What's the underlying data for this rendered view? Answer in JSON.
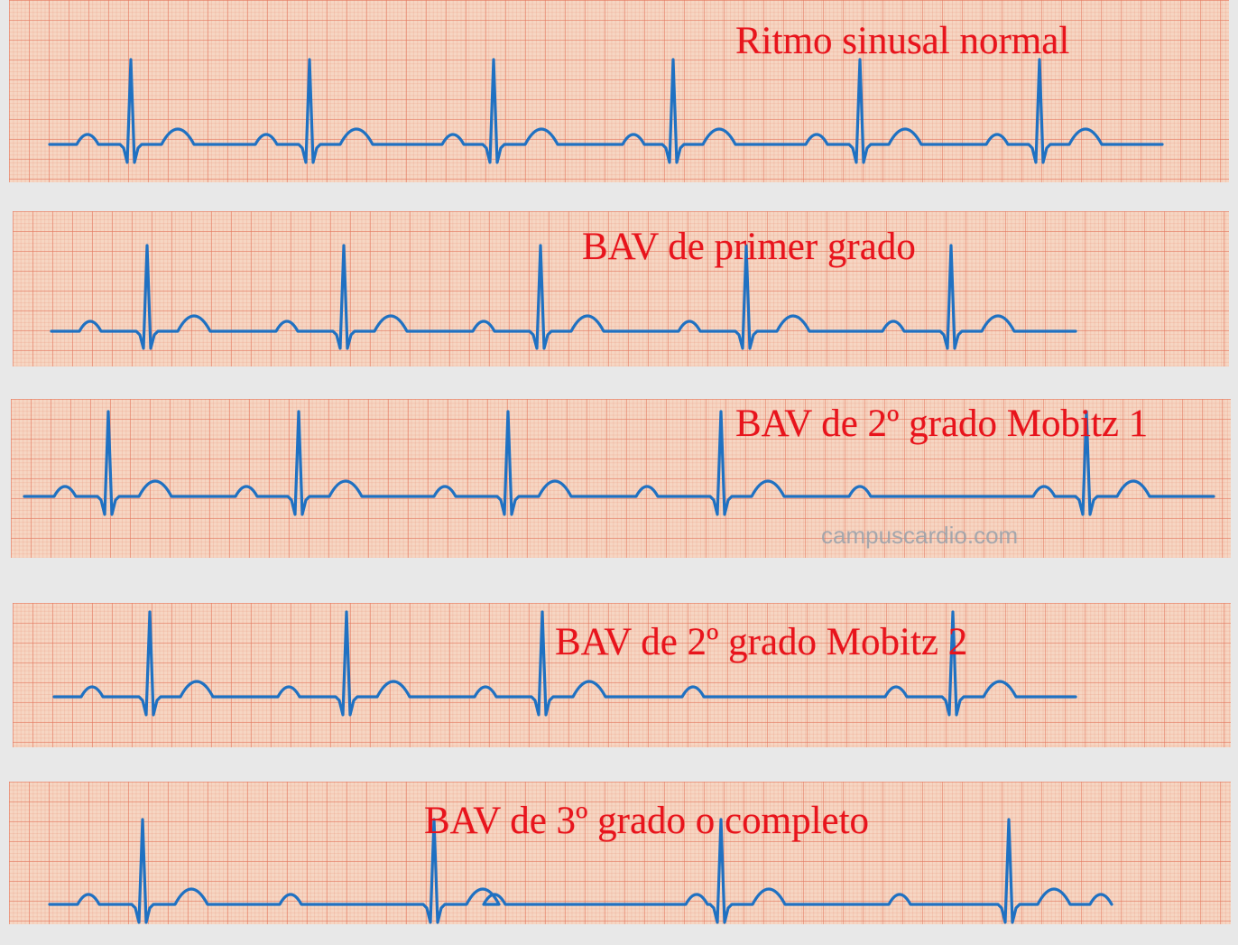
{
  "strips": [
    {
      "id": "sinus",
      "title": "Ritmo sinusal normal"
    },
    {
      "id": "bav1",
      "title": "BAV de primer grado"
    },
    {
      "id": "mobitz1",
      "title": "BAV de 2º grado Mobitz 1"
    },
    {
      "id": "mobitz2",
      "title": "BAV de 2º grado Mobitz 2"
    },
    {
      "id": "bav3",
      "title": "BAV de 3º grado o completo"
    }
  ],
  "watermark": "campuscardio.com",
  "colors": {
    "trace": "#1f71c2",
    "title": "#e8141c",
    "paper": "#f6d6c3",
    "grid": "#e4785f"
  }
}
